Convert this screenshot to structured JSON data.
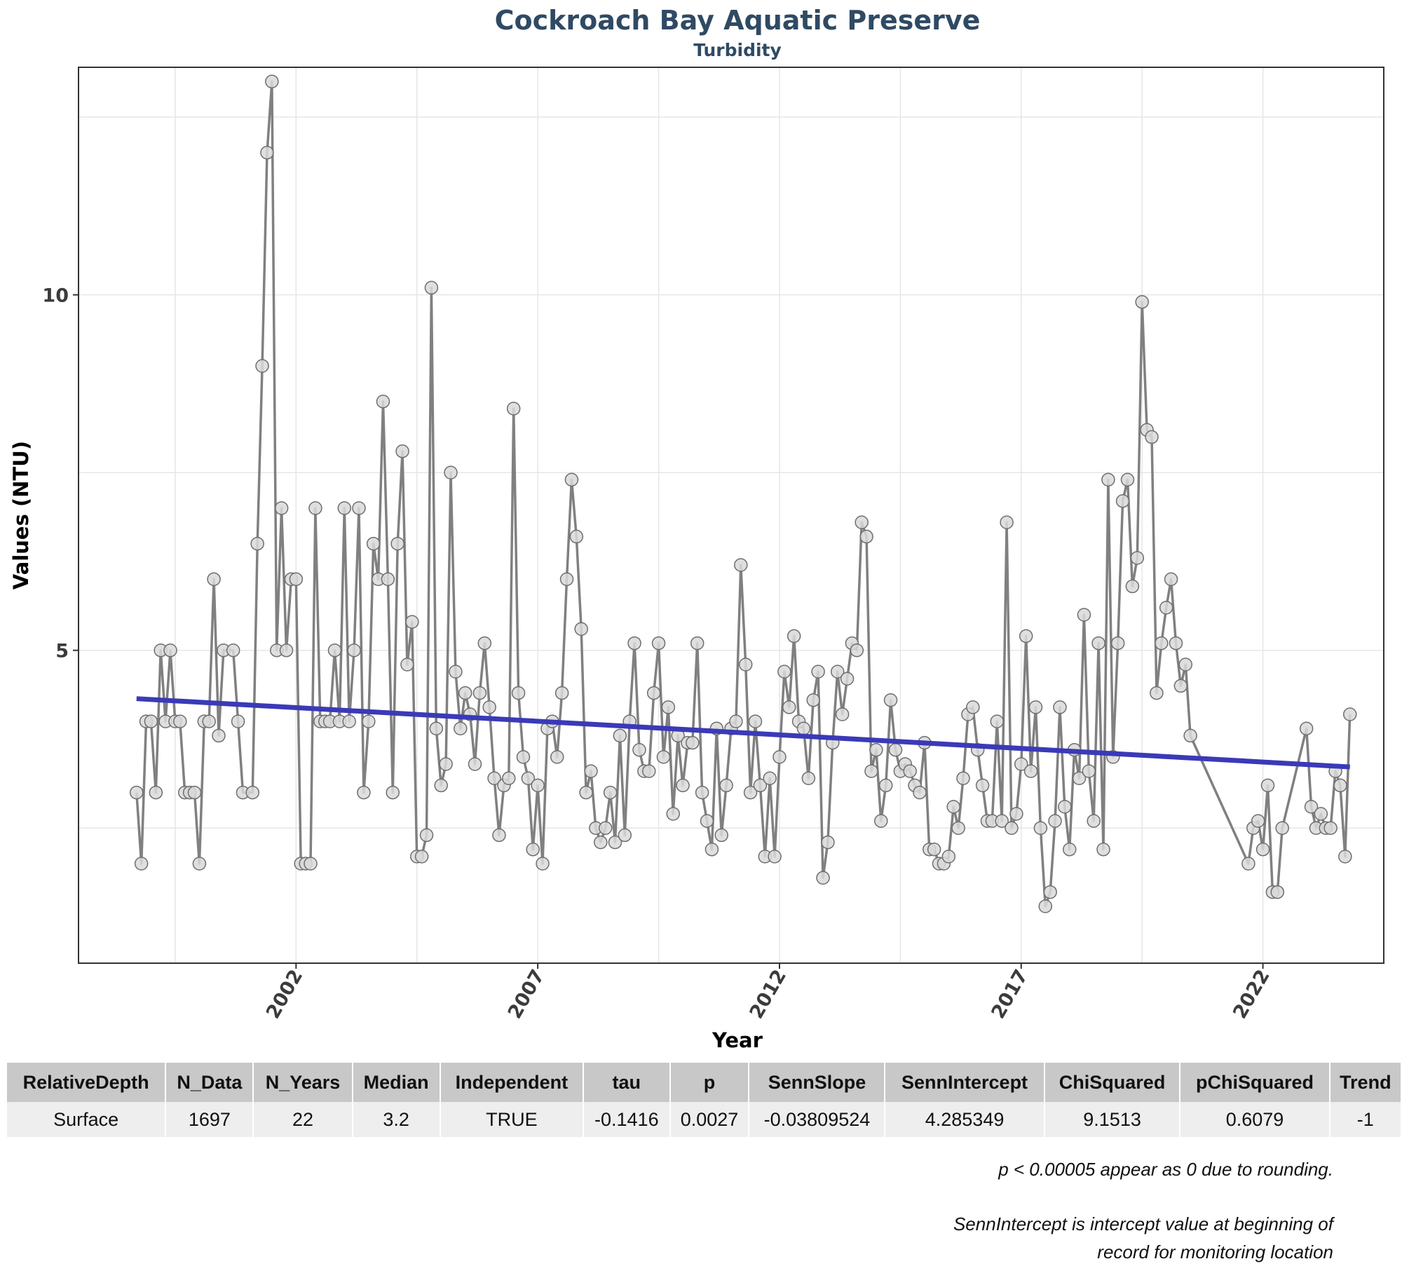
{
  "chart_data": {
    "type": "line",
    "title": "Cockroach Bay Aquatic Preserve",
    "subtitle": "Turbidity",
    "xlabel": "Year",
    "ylabel": "Values (NTU)",
    "x_ticks": [
      "2002",
      "2007",
      "2012",
      "2017",
      "2022"
    ],
    "y_ticks": [
      "5",
      "10"
    ],
    "xlim": [
      1997.5,
      2024.5
    ],
    "ylim": [
      0.6,
      13.2
    ],
    "grid": true,
    "series": [
      {
        "marker": "circle",
        "color": "#808080",
        "points": [
          [
            1998.7,
            3.0
          ],
          [
            1998.8,
            2.0
          ],
          [
            1998.9,
            4.0
          ],
          [
            1999.0,
            4.0
          ],
          [
            1999.1,
            3.0
          ],
          [
            1999.2,
            5.0
          ],
          [
            1999.3,
            4.0
          ],
          [
            1999.4,
            5.0
          ],
          [
            1999.5,
            4.0
          ],
          [
            1999.6,
            4.0
          ],
          [
            1999.7,
            3.0
          ],
          [
            1999.8,
            3.0
          ],
          [
            1999.9,
            3.0
          ],
          [
            2000.0,
            2.0
          ],
          [
            2000.1,
            4.0
          ],
          [
            2000.2,
            4.0
          ],
          [
            2000.3,
            6.0
          ],
          [
            2000.4,
            3.8
          ],
          [
            2000.5,
            5.0
          ],
          [
            2000.7,
            5.0
          ],
          [
            2000.8,
            4.0
          ],
          [
            2000.9,
            3.0
          ],
          [
            2001.1,
            3.0
          ],
          [
            2001.2,
            6.5
          ],
          [
            2001.3,
            9.0
          ],
          [
            2001.4,
            12.0
          ],
          [
            2001.5,
            13.0
          ],
          [
            2001.6,
            5.0
          ],
          [
            2001.7,
            7.0
          ],
          [
            2001.8,
            5.0
          ],
          [
            2001.9,
            6.0
          ],
          [
            2002.0,
            6.0
          ],
          [
            2002.1,
            2.0
          ],
          [
            2002.2,
            2.0
          ],
          [
            2002.3,
            2.0
          ],
          [
            2002.4,
            7.0
          ],
          [
            2002.5,
            4.0
          ],
          [
            2002.6,
            4.0
          ],
          [
            2002.7,
            4.0
          ],
          [
            2002.8,
            5.0
          ],
          [
            2002.9,
            4.0
          ],
          [
            2003.0,
            7.0
          ],
          [
            2003.1,
            4.0
          ],
          [
            2003.2,
            5.0
          ],
          [
            2003.3,
            7.0
          ],
          [
            2003.4,
            3.0
          ],
          [
            2003.5,
            4.0
          ],
          [
            2003.6,
            6.5
          ],
          [
            2003.7,
            6.0
          ],
          [
            2003.8,
            8.5
          ],
          [
            2003.9,
            6.0
          ],
          [
            2004.0,
            3.0
          ],
          [
            2004.1,
            6.5
          ],
          [
            2004.2,
            7.8
          ],
          [
            2004.3,
            4.8
          ],
          [
            2004.4,
            5.4
          ],
          [
            2004.5,
            2.1
          ],
          [
            2004.6,
            2.1
          ],
          [
            2004.7,
            2.4
          ],
          [
            2004.8,
            10.1
          ],
          [
            2004.9,
            3.9
          ],
          [
            2005.0,
            3.1
          ],
          [
            2005.1,
            3.4
          ],
          [
            2005.2,
            7.5
          ],
          [
            2005.3,
            4.7
          ],
          [
            2005.4,
            3.9
          ],
          [
            2005.5,
            4.4
          ],
          [
            2005.6,
            4.1
          ],
          [
            2005.7,
            3.4
          ],
          [
            2005.8,
            4.4
          ],
          [
            2005.9,
            5.1
          ],
          [
            2006.0,
            4.2
          ],
          [
            2006.1,
            3.2
          ],
          [
            2006.2,
            2.4
          ],
          [
            2006.3,
            3.1
          ],
          [
            2006.4,
            3.2
          ],
          [
            2006.5,
            8.4
          ],
          [
            2006.6,
            4.4
          ],
          [
            2006.7,
            3.5
          ],
          [
            2006.8,
            3.2
          ],
          [
            2006.9,
            2.2
          ],
          [
            2007.0,
            3.1
          ],
          [
            2007.1,
            2.0
          ],
          [
            2007.2,
            3.9
          ],
          [
            2007.3,
            4.0
          ],
          [
            2007.4,
            3.5
          ],
          [
            2007.5,
            4.4
          ],
          [
            2007.6,
            6.0
          ],
          [
            2007.7,
            7.4
          ],
          [
            2007.8,
            6.6
          ],
          [
            2007.9,
            5.3
          ],
          [
            2008.0,
            3.0
          ],
          [
            2008.1,
            3.3
          ],
          [
            2008.2,
            2.5
          ],
          [
            2008.3,
            2.3
          ],
          [
            2008.4,
            2.5
          ],
          [
            2008.5,
            3.0
          ],
          [
            2008.6,
            2.3
          ],
          [
            2008.7,
            3.8
          ],
          [
            2008.8,
            2.4
          ],
          [
            2008.9,
            4.0
          ],
          [
            2009.0,
            5.1
          ],
          [
            2009.1,
            3.6
          ],
          [
            2009.2,
            3.3
          ],
          [
            2009.3,
            3.3
          ],
          [
            2009.4,
            4.4
          ],
          [
            2009.5,
            5.1
          ],
          [
            2009.6,
            3.5
          ],
          [
            2009.7,
            4.2
          ],
          [
            2009.8,
            2.7
          ],
          [
            2009.9,
            3.8
          ],
          [
            2010.0,
            3.1
          ],
          [
            2010.1,
            3.7
          ],
          [
            2010.2,
            3.7
          ],
          [
            2010.3,
            5.1
          ],
          [
            2010.4,
            3.0
          ],
          [
            2010.5,
            2.6
          ],
          [
            2010.6,
            2.2
          ],
          [
            2010.7,
            3.9
          ],
          [
            2010.8,
            2.4
          ],
          [
            2010.9,
            3.1
          ],
          [
            2011.0,
            3.9
          ],
          [
            2011.1,
            4.0
          ],
          [
            2011.2,
            6.2
          ],
          [
            2011.3,
            4.8
          ],
          [
            2011.4,
            3.0
          ],
          [
            2011.5,
            4.0
          ],
          [
            2011.6,
            3.1
          ],
          [
            2011.7,
            2.1
          ],
          [
            2011.8,
            3.2
          ],
          [
            2011.9,
            2.1
          ],
          [
            2012.0,
            3.5
          ],
          [
            2012.1,
            4.7
          ],
          [
            2012.2,
            4.2
          ],
          [
            2012.3,
            5.2
          ],
          [
            2012.4,
            4.0
          ],
          [
            2012.5,
            3.9
          ],
          [
            2012.6,
            3.2
          ],
          [
            2012.7,
            4.3
          ],
          [
            2012.8,
            4.7
          ],
          [
            2012.9,
            1.8
          ],
          [
            2013.0,
            2.3
          ],
          [
            2013.1,
            3.7
          ],
          [
            2013.2,
            4.7
          ],
          [
            2013.3,
            4.1
          ],
          [
            2013.4,
            4.6
          ],
          [
            2013.5,
            5.1
          ],
          [
            2013.6,
            5.0
          ],
          [
            2013.7,
            6.8
          ],
          [
            2013.8,
            6.6
          ],
          [
            2013.9,
            3.3
          ],
          [
            2014.0,
            3.6
          ],
          [
            2014.1,
            2.6
          ],
          [
            2014.2,
            3.1
          ],
          [
            2014.3,
            4.3
          ],
          [
            2014.4,
            3.6
          ],
          [
            2014.5,
            3.3
          ],
          [
            2014.6,
            3.4
          ],
          [
            2014.7,
            3.3
          ],
          [
            2014.8,
            3.1
          ],
          [
            2014.9,
            3.0
          ],
          [
            2015.0,
            3.7
          ],
          [
            2015.1,
            2.2
          ],
          [
            2015.2,
            2.2
          ],
          [
            2015.3,
            2.0
          ],
          [
            2015.4,
            2.0
          ],
          [
            2015.5,
            2.1
          ],
          [
            2015.6,
            2.8
          ],
          [
            2015.7,
            2.5
          ],
          [
            2015.8,
            3.2
          ],
          [
            2015.9,
            4.1
          ],
          [
            2016.0,
            4.2
          ],
          [
            2016.1,
            3.6
          ],
          [
            2016.2,
            3.1
          ],
          [
            2016.3,
            2.6
          ],
          [
            2016.4,
            2.6
          ],
          [
            2016.5,
            4.0
          ],
          [
            2016.6,
            2.6
          ],
          [
            2016.7,
            6.8
          ],
          [
            2016.8,
            2.5
          ],
          [
            2016.9,
            2.7
          ],
          [
            2017.0,
            3.4
          ],
          [
            2017.1,
            5.2
          ],
          [
            2017.2,
            3.3
          ],
          [
            2017.3,
            4.2
          ],
          [
            2017.4,
            2.5
          ],
          [
            2017.5,
            1.4
          ],
          [
            2017.6,
            1.6
          ],
          [
            2017.7,
            2.6
          ],
          [
            2017.8,
            4.2
          ],
          [
            2017.9,
            2.8
          ],
          [
            2018.0,
            2.2
          ],
          [
            2018.1,
            3.6
          ],
          [
            2018.2,
            3.2
          ],
          [
            2018.3,
            5.5
          ],
          [
            2018.4,
            3.3
          ],
          [
            2018.5,
            2.6
          ],
          [
            2018.6,
            5.1
          ],
          [
            2018.7,
            2.2
          ],
          [
            2018.8,
            7.4
          ],
          [
            2018.9,
            3.5
          ],
          [
            2019.0,
            5.1
          ],
          [
            2019.1,
            7.1
          ],
          [
            2019.2,
            7.4
          ],
          [
            2019.3,
            5.9
          ],
          [
            2019.4,
            6.3
          ],
          [
            2019.5,
            9.9
          ],
          [
            2019.6,
            8.1
          ],
          [
            2019.7,
            8.0
          ],
          [
            2019.8,
            4.4
          ],
          [
            2019.9,
            5.1
          ],
          [
            2020.0,
            5.6
          ],
          [
            2020.1,
            6.0
          ],
          [
            2020.2,
            5.1
          ],
          [
            2020.3,
            4.5
          ],
          [
            2020.4,
            4.8
          ],
          [
            2020.5,
            3.8
          ],
          [
            2021.7,
            2.0
          ],
          [
            2021.8,
            2.5
          ],
          [
            2021.9,
            2.6
          ],
          [
            2022.0,
            2.2
          ],
          [
            2022.1,
            3.1
          ],
          [
            2022.2,
            1.6
          ],
          [
            2022.3,
            1.6
          ],
          [
            2022.4,
            2.5
          ],
          [
            2022.9,
            3.9
          ],
          [
            2023.0,
            2.8
          ],
          [
            2023.1,
            2.5
          ],
          [
            2023.2,
            2.7
          ],
          [
            2023.3,
            2.5
          ],
          [
            2023.4,
            2.5
          ],
          [
            2023.5,
            3.3
          ],
          [
            2023.6,
            3.1
          ],
          [
            2023.7,
            2.1
          ],
          [
            2023.8,
            4.1
          ]
        ]
      },
      {
        "type": "trend",
        "color": "#3a3ab8",
        "points": [
          [
            1998.7,
            4.32
          ],
          [
            2023.8,
            3.36
          ]
        ]
      }
    ]
  },
  "stats_table": {
    "headers": [
      "RelativeDepth",
      "N_Data",
      "N_Years",
      "Median",
      "Independent",
      "tau",
      "p",
      "SennSlope",
      "SennIntercept",
      "ChiSquared",
      "pChiSquared",
      "Trend"
    ],
    "row": [
      "Surface",
      "1697",
      "22",
      "3.2",
      "TRUE",
      "-0.1416",
      "0.0027",
      "-0.03809524",
      "4.285349",
      "9.1513",
      "0.6079",
      "-1"
    ]
  },
  "notes": {
    "note1": "p < 0.00005 appear as 0 due to rounding.",
    "note2_line1": "SennIntercept is intercept value at beginning of",
    "note2_line2": "record for monitoring location"
  }
}
